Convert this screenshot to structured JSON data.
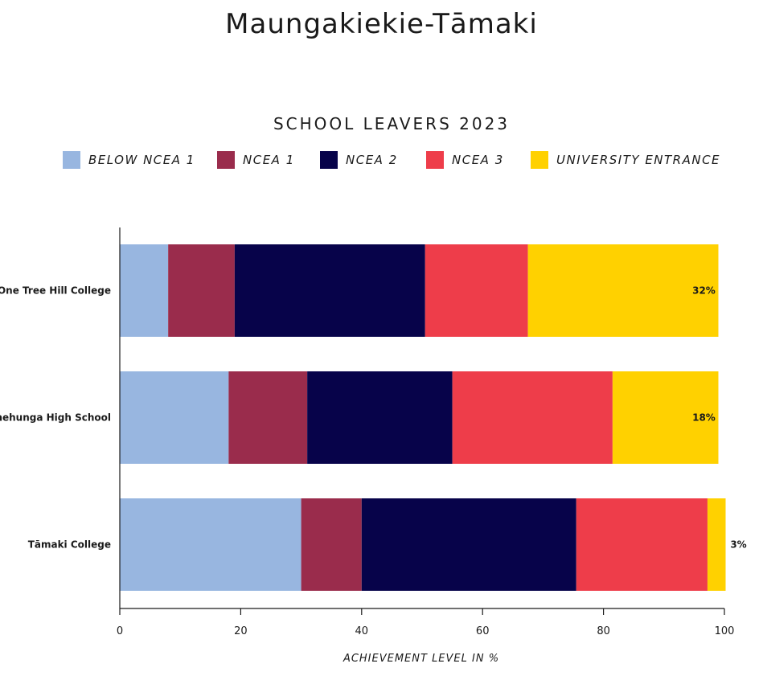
{
  "title": "Maungakiekie-Tāmaki",
  "chart_data": {
    "type": "bar",
    "orientation": "horizontal",
    "stacked": true,
    "title": "SCHOOL LEAVERS 2023",
    "xlabel": "ACHIEVEMENT LEVEL IN %",
    "ylabel": "",
    "xlim": [
      0,
      100
    ],
    "xticks": [
      0,
      20,
      40,
      60,
      80,
      100
    ],
    "grid": false,
    "legend_position": "top",
    "categories": [
      "One Tree Hill College",
      "Onehunga High School",
      "Tāmaki College"
    ],
    "series": [
      {
        "name": "BELOW NCEA 1",
        "color": "#98B6E0",
        "values": [
          8,
          18,
          30
        ]
      },
      {
        "name": "NCEA 1",
        "color": "#9A2C4C",
        "values": [
          11,
          13,
          10
        ]
      },
      {
        "name": "NCEA 2",
        "color": "#07034A",
        "values": [
          31.5,
          24,
          35.5
        ]
      },
      {
        "name": "NCEA 3",
        "color": "#EE3D4A",
        "values": [
          17,
          26.5,
          21.7
        ]
      },
      {
        "name": "UNIVERSITY ENTRANCE",
        "color": "#FFD100",
        "values": [
          31.5,
          17.5,
          3
        ]
      }
    ],
    "data_labels": [
      "32%",
      "18%",
      "3%"
    ]
  }
}
